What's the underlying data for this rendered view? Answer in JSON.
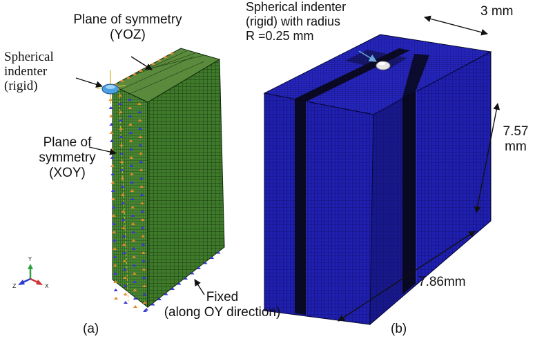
{
  "panel_a": {
    "plane_yoz": [
      "Plane of symmetry",
      "(YOZ)"
    ],
    "indenter": [
      "Spherical",
      "indenter",
      "(rigid)"
    ],
    "plane_xoy": [
      "Plane of",
      "symmetry",
      "(XOY)"
    ],
    "fixed": [
      "Fixed",
      "(along OY direction)"
    ],
    "axis": {
      "y": "Y",
      "z": "Z",
      "x": "X"
    },
    "caption": "(a)"
  },
  "panel_b": {
    "indenter": [
      "Spherical indenter",
      "(rigid) with radius",
      "R =0.25 mm"
    ],
    "dim_width": "3 mm",
    "dim_height": [
      "7.57",
      "mm"
    ],
    "dim_length": "7.86mm",
    "caption": "(b)"
  },
  "colors": {
    "mesh_green": "#3f7a2a",
    "mesh_blue": "#1c1ca8",
    "dense_band": "#080818",
    "bc_orange": "#e08a2c",
    "bc_blue": "#3a3ad0"
  }
}
